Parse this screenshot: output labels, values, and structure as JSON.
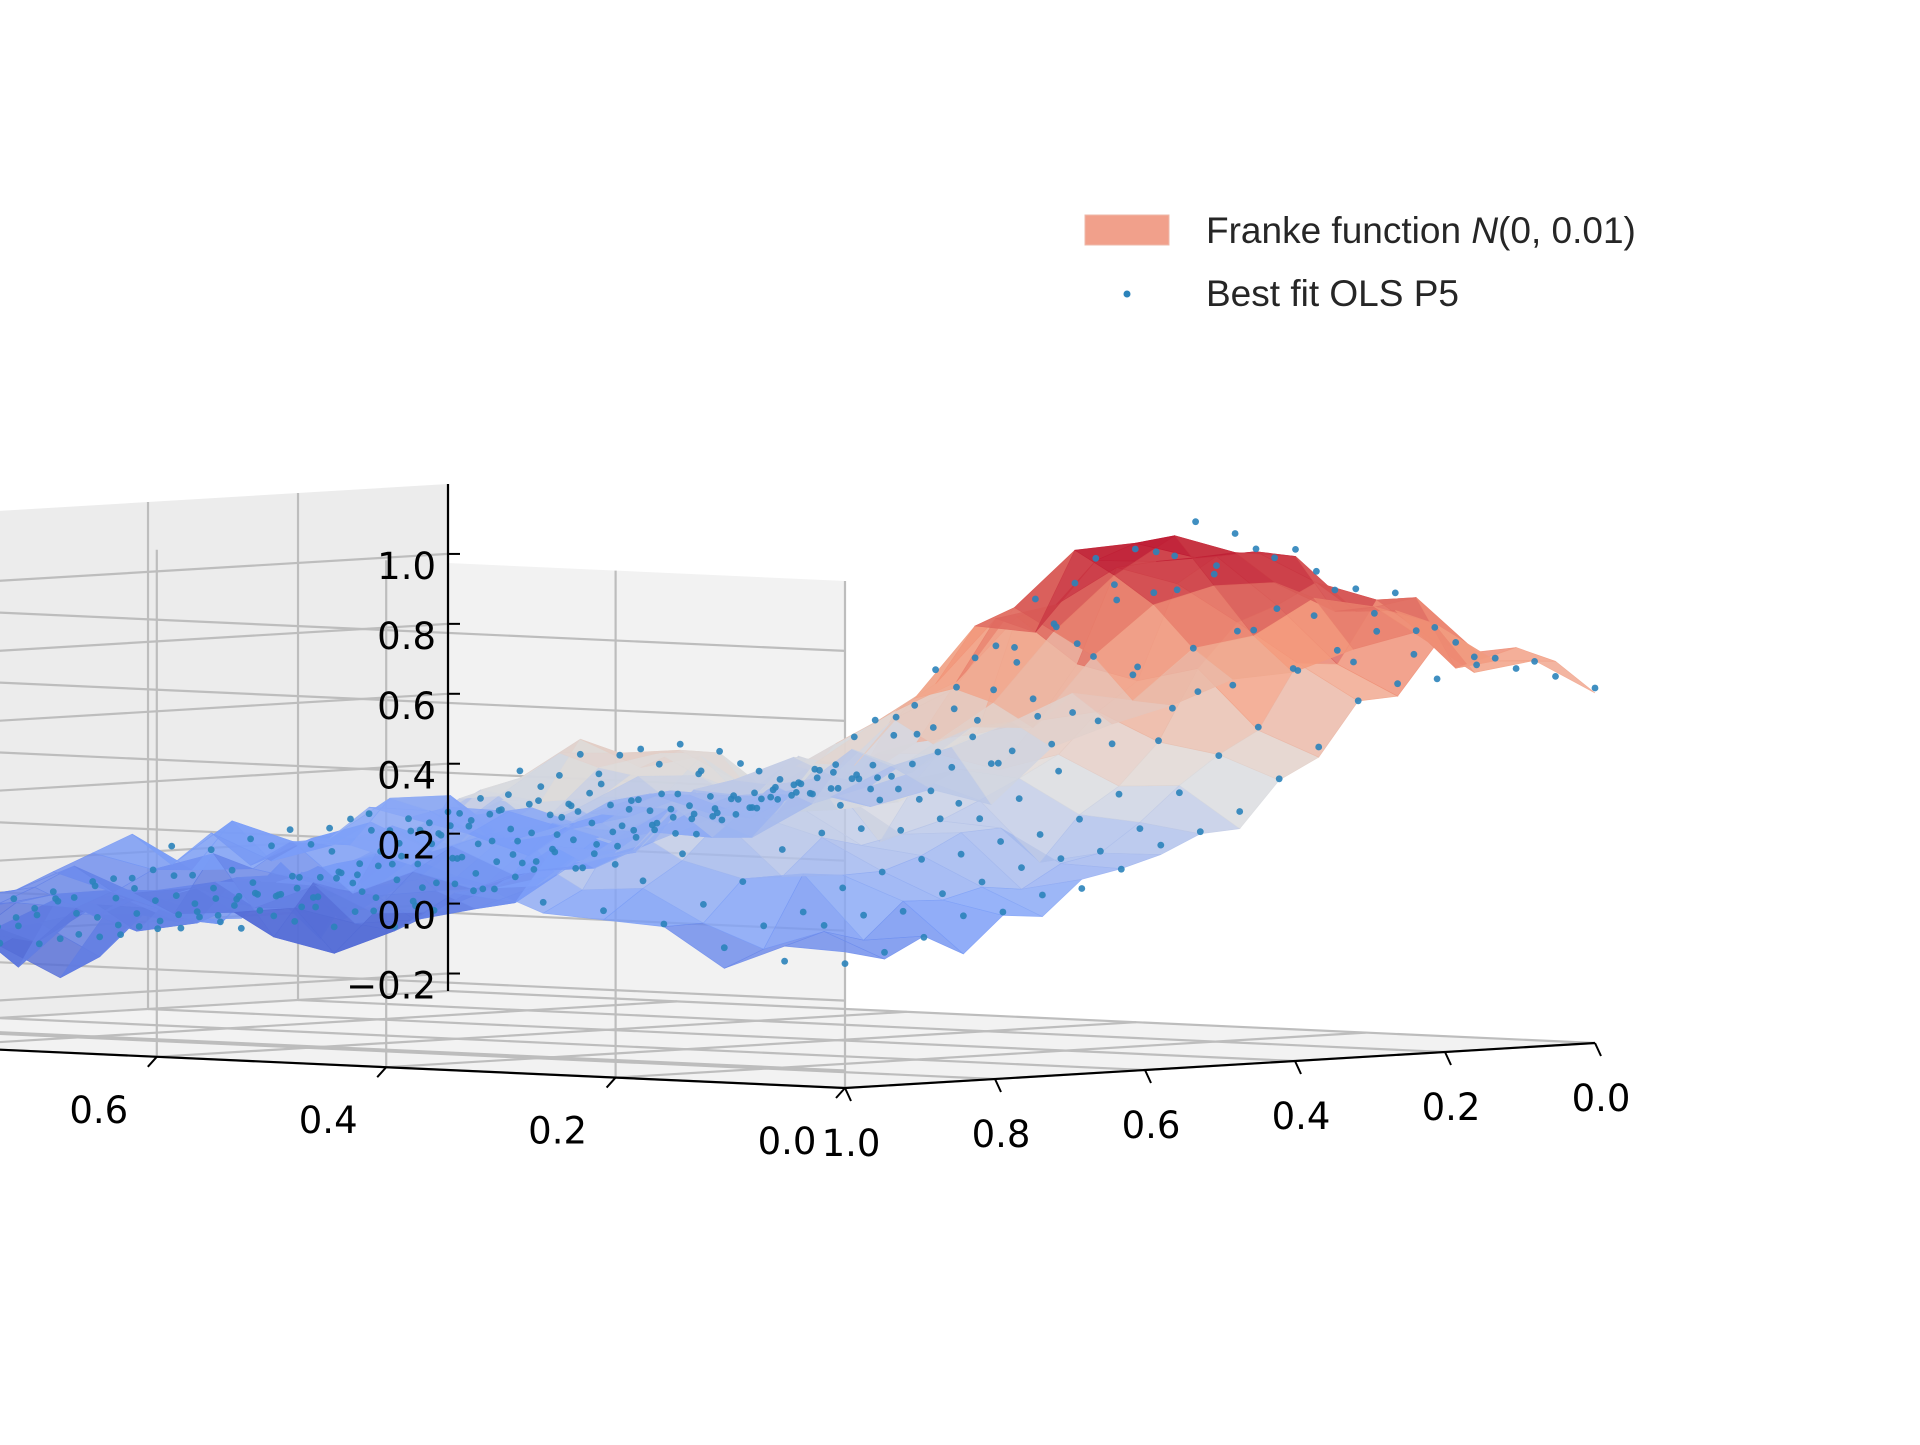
{
  "chart_data": {
    "type": "surface3d",
    "legend": {
      "placement": "top-right",
      "entries": [
        {
          "label_prefix": "Franke function ",
          "label_italic": "N",
          "label_suffix": "(0, 0.01)",
          "kind": "surface",
          "color": "#f1a08b"
        },
        {
          "label": "Best fit OLS P5",
          "kind": "scatter",
          "color": "#2b83ba"
        }
      ]
    },
    "axes": {
      "x": {
        "ticks": [
          0.0,
          0.2,
          0.4,
          0.6,
          0.8,
          1.0
        ],
        "tick_labels": [
          "0.0",
          "0.2",
          "0.4",
          "0.6",
          "0.8",
          "1.0"
        ],
        "range": [
          0,
          1
        ]
      },
      "y": {
        "ticks": [
          0.0,
          0.2,
          0.4,
          0.6,
          0.8,
          1.0
        ],
        "tick_labels": [
          "0.0",
          "0.2",
          "0.4",
          "0.6",
          "0.8",
          "1.0"
        ],
        "range": [
          0,
          1
        ]
      },
      "z": {
        "ticks": [
          -0.2,
          0.0,
          0.2,
          0.4,
          0.6,
          0.8,
          1.0
        ],
        "tick_labels": [
          "−0.2",
          "0.0",
          "0.2",
          "0.4",
          "0.6",
          "0.8",
          "1.0"
        ],
        "range": [
          -0.25,
          1.2
        ]
      }
    },
    "grid": true,
    "colormap": "coolwarm",
    "surface": {
      "function": "Franke",
      "noise": "N(0, 0.01)",
      "grid_points": 20
    },
    "scatter": {
      "model": "OLS polynomial degree 5",
      "grid_points": 20,
      "color": "#2b83ba"
    }
  }
}
